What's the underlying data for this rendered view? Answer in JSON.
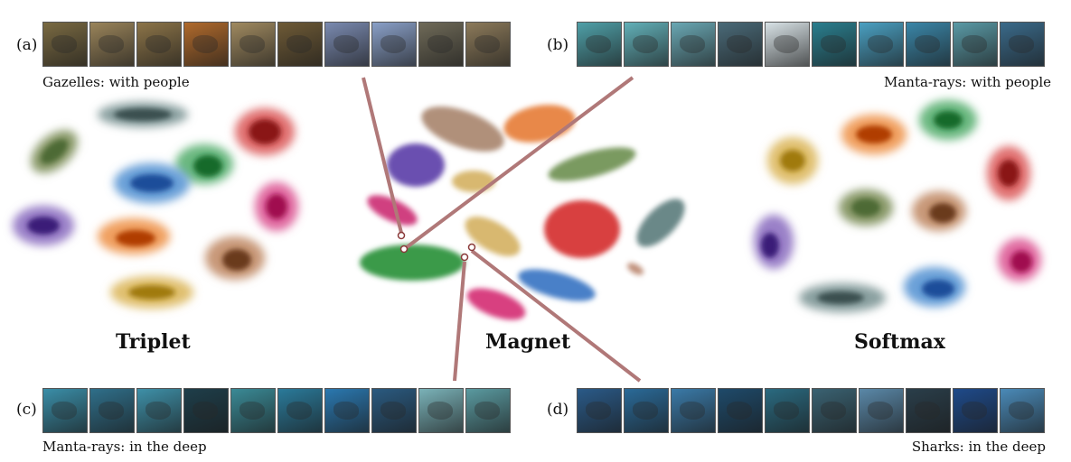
{
  "panels": {
    "a": {
      "label": "(a)",
      "caption": "Gazelles: with people",
      "thumb_colors": [
        "#7a6a42",
        "#9a845a",
        "#8c7448",
        "#b06a2c",
        "#a08a60",
        "#6e5a36",
        "#7a8ab0",
        "#8aa0c8",
        "#6f6a58",
        "#8c7a5a"
      ]
    },
    "b": {
      "label": "(b)",
      "caption": "Manta-rays: with people",
      "thumb_colors": [
        "#4fa0a8",
        "#62b0b8",
        "#6aa8b4",
        "#4a6a78",
        "#d8e2e6",
        "#2a7f8f",
        "#4aa0c2",
        "#3a86a8",
        "#5a9aa6",
        "#3a6a8a"
      ]
    },
    "c": {
      "label": "(c)",
      "caption": "Manta-rays: in the deep",
      "thumb_colors": [
        "#3a8ea8",
        "#2f6f8a",
        "#3e90a8",
        "#1e3e4a",
        "#3a8a96",
        "#2a7a9a",
        "#2a78b0",
        "#2a5a80",
        "#7ab2b8",
        "#5a9aa0"
      ]
    },
    "d": {
      "label": "(d)",
      "caption": "Sharks: in the deep",
      "thumb_colors": [
        "#2a5a88",
        "#2a6a98",
        "#3a7aa8",
        "#1e4a6a",
        "#2a6a80",
        "#3a6272",
        "#5a88a8",
        "#2a3e4a",
        "#1e4a8a",
        "#4a8ab8"
      ]
    }
  },
  "titles": {
    "triplet": "Triplet",
    "magnet": "Magnet",
    "softmax": "Softmax"
  },
  "colors": {
    "arrow": "#b07878"
  }
}
